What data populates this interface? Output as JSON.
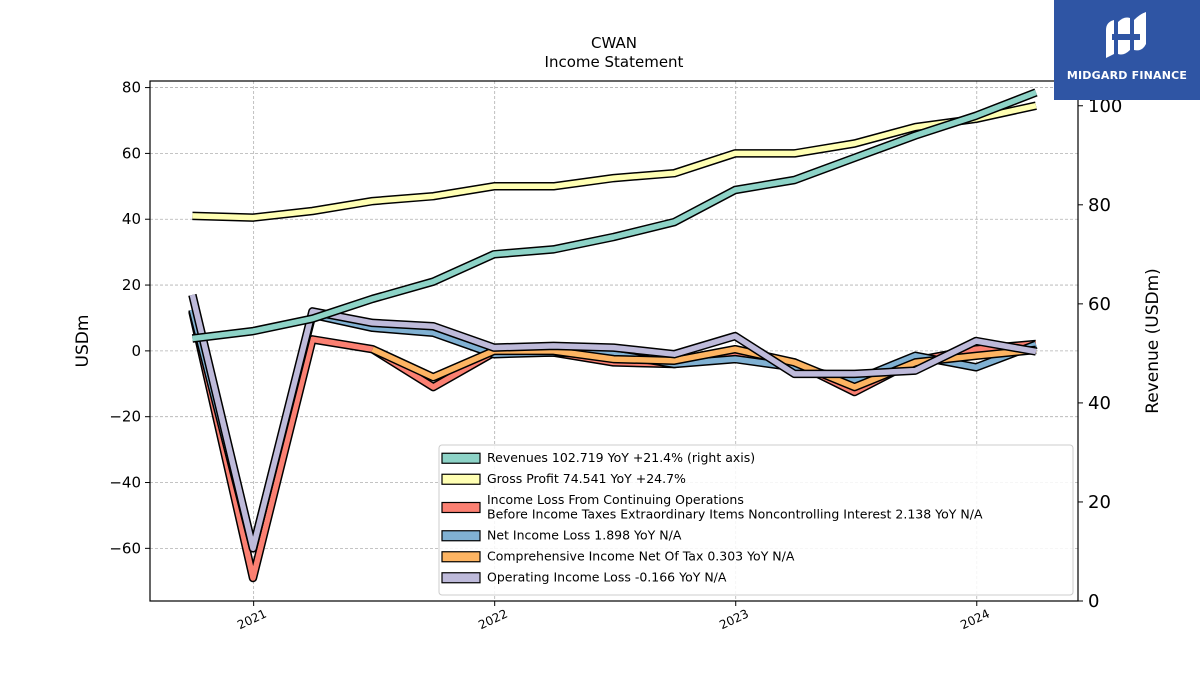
{
  "branding": {
    "name": "MIDGARD FINANCE",
    "background": "#2f55a4"
  },
  "chart_data": {
    "type": "line",
    "title": "CWAN",
    "subtitle": "Income Statement",
    "ylabel": "USDm",
    "ylabel_right": "Revenue (USDm)",
    "ylim": [
      -76,
      82
    ],
    "ylim_right": [
      0,
      105
    ],
    "yticks": [
      80,
      60,
      40,
      20,
      0,
      -20,
      -40,
      -60
    ],
    "yticks_right": [
      100,
      80,
      60,
      40,
      20,
      0
    ],
    "xlim": [
      2020.57,
      2024.42
    ],
    "xticks": [
      2021,
      2022,
      2023,
      2024
    ],
    "xtick_labels": [
      "2021",
      "2022",
      "2023",
      "2024"
    ],
    "x": [
      "2020-09-30",
      "2020-12-31",
      "2021-03-31",
      "2021-06-30",
      "2021-09-30",
      "2021-12-31",
      "2022-03-31",
      "2022-06-30",
      "2022-09-30",
      "2022-12-31",
      "2023-03-31",
      "2023-06-30",
      "2023-09-30",
      "2023-12-31",
      "2024-03-31"
    ],
    "grid": true,
    "legend_position": "lower-right",
    "series": [
      {
        "name": "Revenues  102.719 YoY +21.4% (right axis)",
        "color": "#8dd3c7",
        "axis": "right",
        "values": [
          53.0,
          54.5,
          57.0,
          61.0,
          64.5,
          70.0,
          71.0,
          73.5,
          76.5,
          83.0,
          85.0,
          89.5,
          94.0,
          98.0,
          102.7
        ]
      },
      {
        "name": "Gross Profit  74.541 YoY +24.7%",
        "color": "#ffffb3",
        "axis": "left",
        "values": [
          41.0,
          40.5,
          42.5,
          45.5,
          47.0,
          50.0,
          50.0,
          52.5,
          54.0,
          60.0,
          60.0,
          63.0,
          68.0,
          70.5,
          74.5
        ]
      },
      {
        "name": "Income Loss From Continuing Operations\nBefore Income Taxes Extraordinary Items Noncontrolling Interest  2.138 YoY N/A",
        "color": "#fb8072",
        "axis": "left",
        "values": [
          12.0,
          -69.0,
          3.5,
          0.5,
          -11.0,
          -0.5,
          -0.5,
          -3.5,
          -4.0,
          -1.0,
          -3.5,
          -12.5,
          -3.0,
          0.5,
          2.1
        ]
      },
      {
        "name": "Net Income Loss  1.898 YoY N/A",
        "color": "#80b1d3",
        "axis": "left",
        "values": [
          12.5,
          -60.0,
          11.0,
          7.0,
          5.5,
          -1.0,
          -0.5,
          -1.0,
          -4.0,
          -2.5,
          -5.0,
          -9.0,
          -1.5,
          -5.0,
          1.9
        ]
      },
      {
        "name": "Comprehensive Income Net Of Tax  0.303 YoY N/A",
        "color": "#fdb462",
        "axis": "left",
        "values": [
          null,
          null,
          null,
          0.5,
          -8.0,
          0.0,
          0.0,
          -2.5,
          -3.0,
          0.5,
          -3.5,
          -11.0,
          -3.5,
          -1.5,
          0.3
        ]
      },
      {
        "name": "Operating Income Loss  -0.166 YoY N/A",
        "color": "#bebada",
        "axis": "left",
        "values": [
          17.0,
          -60.0,
          12.0,
          8.5,
          7.5,
          1.0,
          1.5,
          1.0,
          -1.0,
          4.5,
          -7.0,
          -7.0,
          -6.0,
          3.0,
          -0.2
        ]
      }
    ]
  }
}
